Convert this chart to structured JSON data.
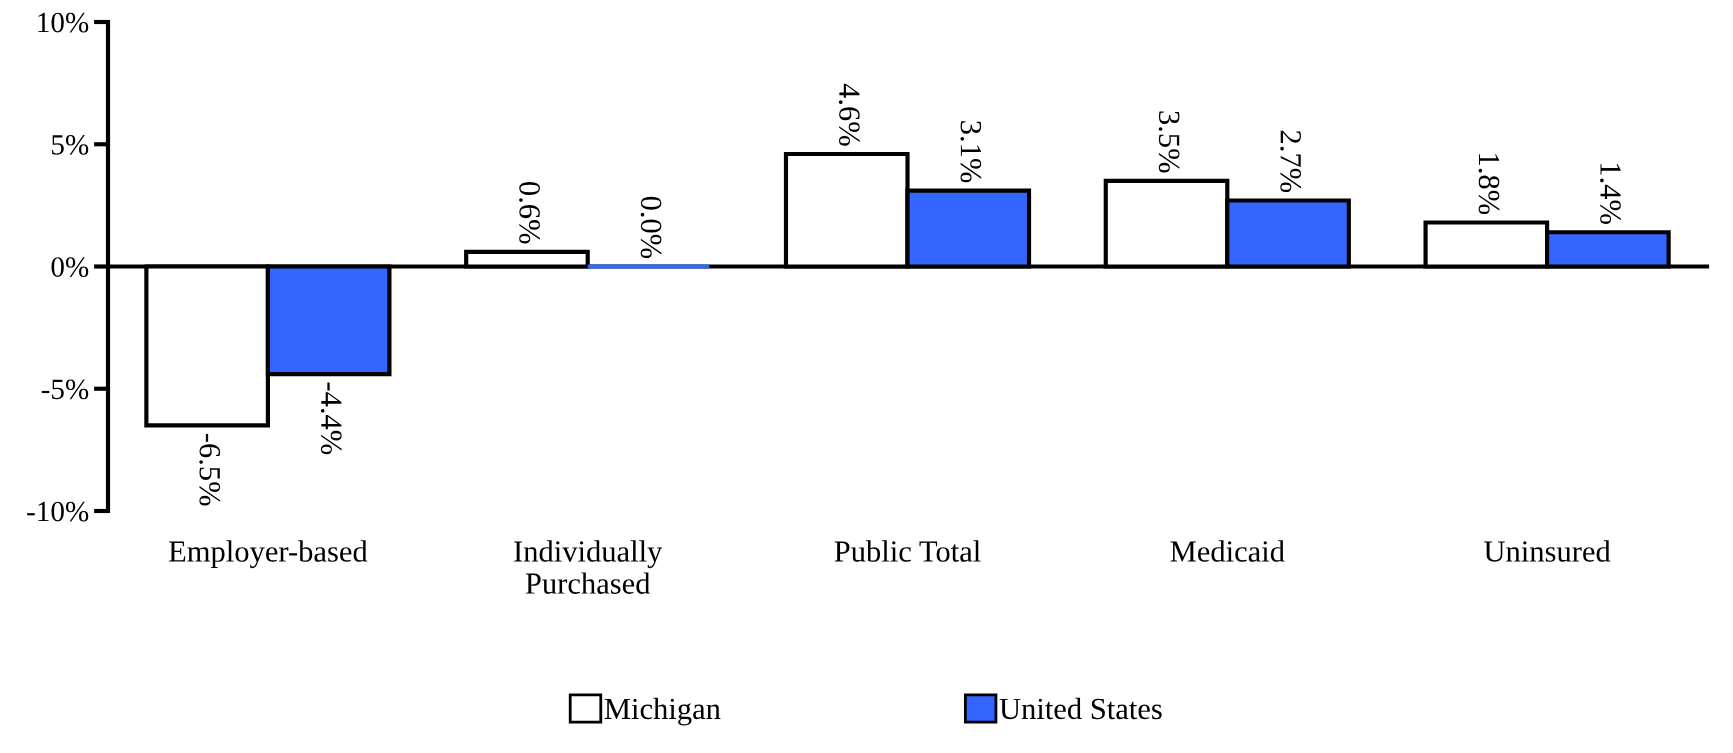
{
  "chart_data": {
    "type": "bar",
    "categories": [
      "Employer-based",
      "Individually\nPurchased",
      "Public Total",
      "Medicaid",
      "Uninsured"
    ],
    "series": [
      {
        "name": "Michigan",
        "color": "#ffffff",
        "values": [
          -6.5,
          0.6,
          4.6,
          3.5,
          1.8
        ],
        "value_labels": [
          "-6.5%",
          "0.6%",
          "4.6%",
          "3.5%",
          "1.8%"
        ]
      },
      {
        "name": "United States",
        "color": "#3366ff",
        "values": [
          -4.4,
          0.0,
          3.1,
          2.7,
          1.4
        ],
        "value_labels": [
          "-4.4%",
          "0.0%",
          "3.1%",
          "2.7%",
          "1.4%"
        ]
      }
    ],
    "ylim": [
      -10,
      10
    ],
    "yticks": [
      {
        "value": -10,
        "label": "-10%"
      },
      {
        "value": -5,
        "label": "-5%"
      },
      {
        "value": 0,
        "label": "0%"
      },
      {
        "value": 5,
        "label": "5%"
      },
      {
        "value": 10,
        "label": "10%"
      }
    ],
    "legend": "bottom"
  }
}
